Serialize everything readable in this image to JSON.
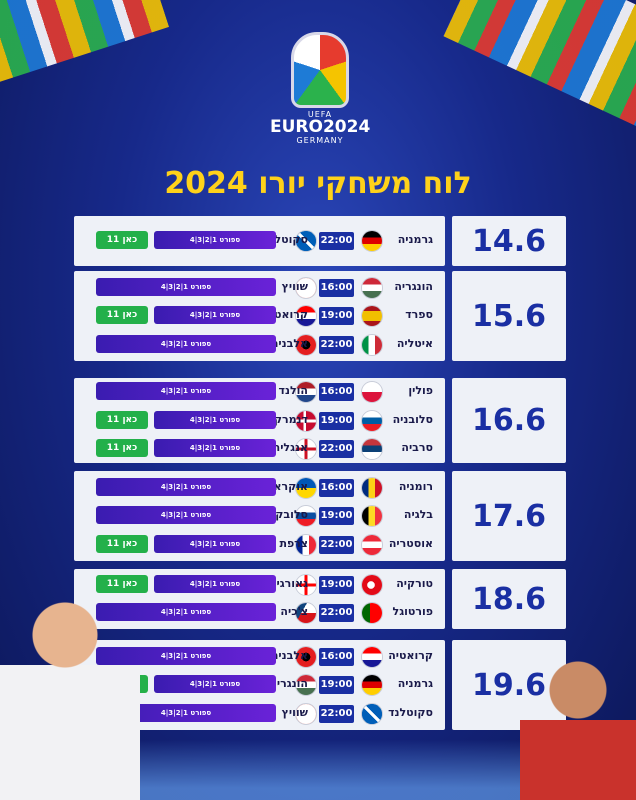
{
  "header": {
    "logo_uefa": "UEFA",
    "logo_euro": "EURO2024",
    "logo_country": "GERMANY",
    "title": "לוח משחקי יורו 2024"
  },
  "channels": {
    "sport": "ספורט 1|2|3|4",
    "kan": "כאן 11"
  },
  "days": [
    {
      "date": "14.6",
      "matches": [
        {
          "home": "גרמניה",
          "away": "סקוטלנד",
          "time": "22:00",
          "channels": [
            "sport",
            "kan"
          ]
        }
      ]
    },
    {
      "date": "15.6",
      "matches": [
        {
          "home": "הונגריה",
          "away": "שוויץ",
          "time": "16:00",
          "channels": [
            "sport"
          ]
        },
        {
          "home": "ספרד",
          "away": "קרואטיה",
          "time": "19:00",
          "channels": [
            "sport",
            "kan"
          ]
        },
        {
          "home": "איטליה",
          "away": "אלבניה",
          "time": "22:00",
          "channels": [
            "sport"
          ]
        }
      ]
    },
    {
      "date": "16.6",
      "matches": [
        {
          "home": "פולין",
          "away": "הולנד",
          "time": "16:00",
          "channels": [
            "sport"
          ]
        },
        {
          "home": "סלובניה",
          "away": "דנמרק",
          "time": "19:00",
          "channels": [
            "sport",
            "kan"
          ]
        },
        {
          "home": "סרביה",
          "away": "אנגליה",
          "time": "22:00",
          "channels": [
            "sport",
            "kan"
          ]
        }
      ]
    },
    {
      "date": "17.6",
      "matches": [
        {
          "home": "רומניה",
          "away": "אוקראינה",
          "time": "16:00",
          "channels": [
            "sport"
          ]
        },
        {
          "home": "בלגיה",
          "away": "סלובקיה",
          "time": "19:00",
          "channels": [
            "sport"
          ]
        },
        {
          "home": "אוסטריה",
          "away": "צרפת",
          "time": "22:00",
          "channels": [
            "sport",
            "kan"
          ]
        }
      ]
    },
    {
      "date": "18.6",
      "matches": [
        {
          "home": "טורקיה",
          "away": "גאורגיה",
          "time": "19:00",
          "channels": [
            "sport",
            "kan"
          ]
        },
        {
          "home": "פורטוגל",
          "away": "צ'כיה",
          "time": "22:00",
          "channels": [
            "sport"
          ]
        }
      ]
    },
    {
      "date": "19.6",
      "matches": [
        {
          "home": "קרואטיה",
          "away": "אלבניה",
          "time": "16:00",
          "channels": [
            "sport"
          ]
        },
        {
          "home": "גרמניה",
          "away": "הונגריה",
          "time": "19:00",
          "channels": [
            "sport",
            "kan"
          ]
        },
        {
          "home": "סקוטלנד",
          "away": "שוויץ",
          "time": "22:00",
          "channels": [
            "sport"
          ]
        }
      ]
    }
  ],
  "colors": {
    "date_text": "#1a2fa3",
    "time_bg": "#1a2fa3",
    "kan_bg": "#23b04a",
    "sport_bg": "#5a20cc",
    "title": "#ffd21a"
  }
}
